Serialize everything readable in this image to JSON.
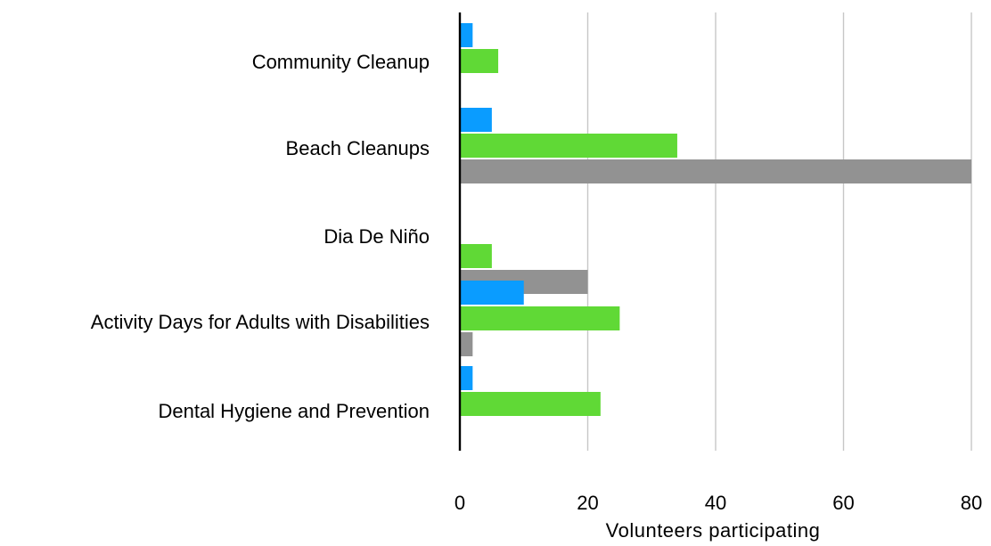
{
  "chart_data": {
    "type": "bar",
    "orientation": "horizontal",
    "categories": [
      "Community Cleanup",
      "Beach Cleanups",
      "Dia De Niño",
      "Activity Days for Adults with Disabilities",
      "Dental Hygiene and Prevention"
    ],
    "series": [
      {
        "color": "#0a9cff",
        "values": [
          2,
          5,
          0,
          10,
          2
        ]
      },
      {
        "color": "#60d936",
        "values": [
          6,
          34,
          5,
          25,
          22
        ]
      },
      {
        "color": "#929292",
        "values": [
          0,
          80,
          20,
          2,
          0
        ]
      }
    ],
    "xlabel": "Volunteers participating",
    "xlim": [
      0,
      80
    ],
    "xticks": [
      0,
      20,
      40,
      60,
      80
    ],
    "grid": true,
    "legend": "none"
  }
}
